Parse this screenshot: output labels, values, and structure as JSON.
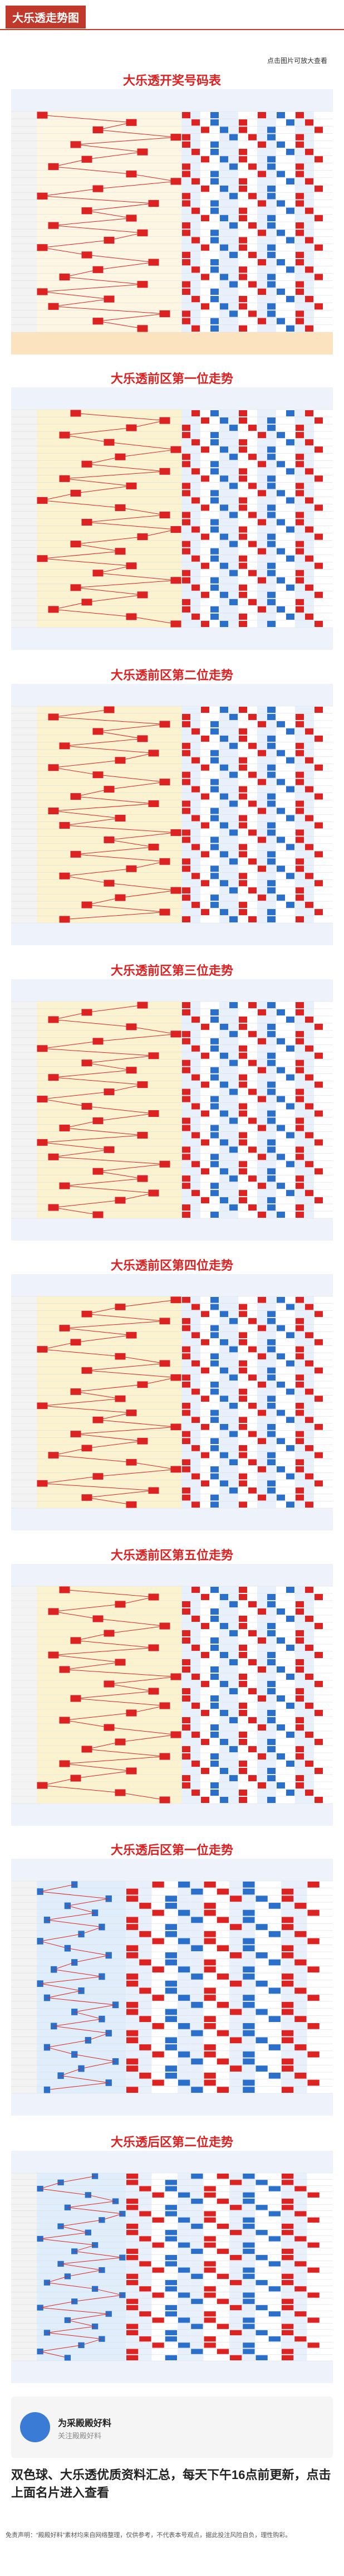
{
  "header": {
    "title": "大乐透走势图",
    "hint": "点击图片可放大查看"
  },
  "charts": [
    {
      "title": "大乐透开奖号码表"
    },
    {
      "title": "大乐透前区第一位走势"
    },
    {
      "title": "大乐透前区第二位走势"
    },
    {
      "title": "大乐透前区第三位走势"
    },
    {
      "title": "大乐透前区第四位走势"
    },
    {
      "title": "大乐透前区第五位走势"
    },
    {
      "title": "大乐透后区第一位走势"
    },
    {
      "title": "大乐透后区第二位走势"
    }
  ],
  "card": {
    "name": "为采殿殿好料",
    "subtitle": "关注殿殿好料"
  },
  "promo": "双色球、大乐透优质资料汇总，每天下午16点前更新，点击上面名片进入查看",
  "disclaimer": "免责声明：“殿殿好料”素材均来自网络整理，仅供参考，不代表本号观点，据此投注风险自负，理性购彩。"
}
